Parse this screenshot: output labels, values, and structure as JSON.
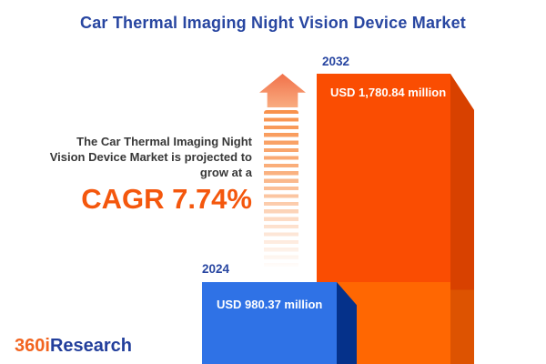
{
  "title": "Car Thermal Imaging Night Vision Device Market",
  "projection": {
    "lines": [
      "The Car Thermal Imaging Night",
      "Vision Device Market is projected to",
      "grow at a"
    ],
    "cagr_label": "CAGR 7.74%"
  },
  "bars": [
    {
      "year": "2024",
      "value": 980.37,
      "value_label": "USD 980.37 million",
      "color": "#2F72E6",
      "side_color": "#05318A"
    },
    {
      "year": "2032",
      "value": 1780.84,
      "value_label": "USD 1,780.84 million",
      "color_upper": "#FA4D02",
      "color_lower": "#FF6702",
      "side_color": "#D84100"
    }
  ],
  "logo": {
    "prefix": "360i",
    "suffix": "Research",
    "prefix_color": "#F2641F",
    "suffix_color": "#233F9C"
  },
  "colors": {
    "title_blue": "#2846A1",
    "accent_orange": "#F4570D",
    "body_text": "#383838",
    "arrow_orange": "#F8914B",
    "background": "#FFFFFF"
  },
  "chart_data": {
    "type": "bar",
    "categories": [
      "2024",
      "2032"
    ],
    "values": [
      980.37,
      1780.84
    ],
    "unit": "USD million",
    "data_labels": [
      "USD 980.37 million",
      "USD 1,780.84 million"
    ],
    "title": "Car Thermal Imaging Night Vision Device Market",
    "annotation": "The Car Thermal Imaging Night Vision Device Market is projected to grow at a CAGR 7.74%",
    "cagr_percent": 7.74,
    "xlabel": "",
    "ylabel": "",
    "legend": false,
    "grid": false,
    "bar_style": "3d",
    "series_colors": [
      "#2F72E6",
      "#FA4D02"
    ]
  }
}
